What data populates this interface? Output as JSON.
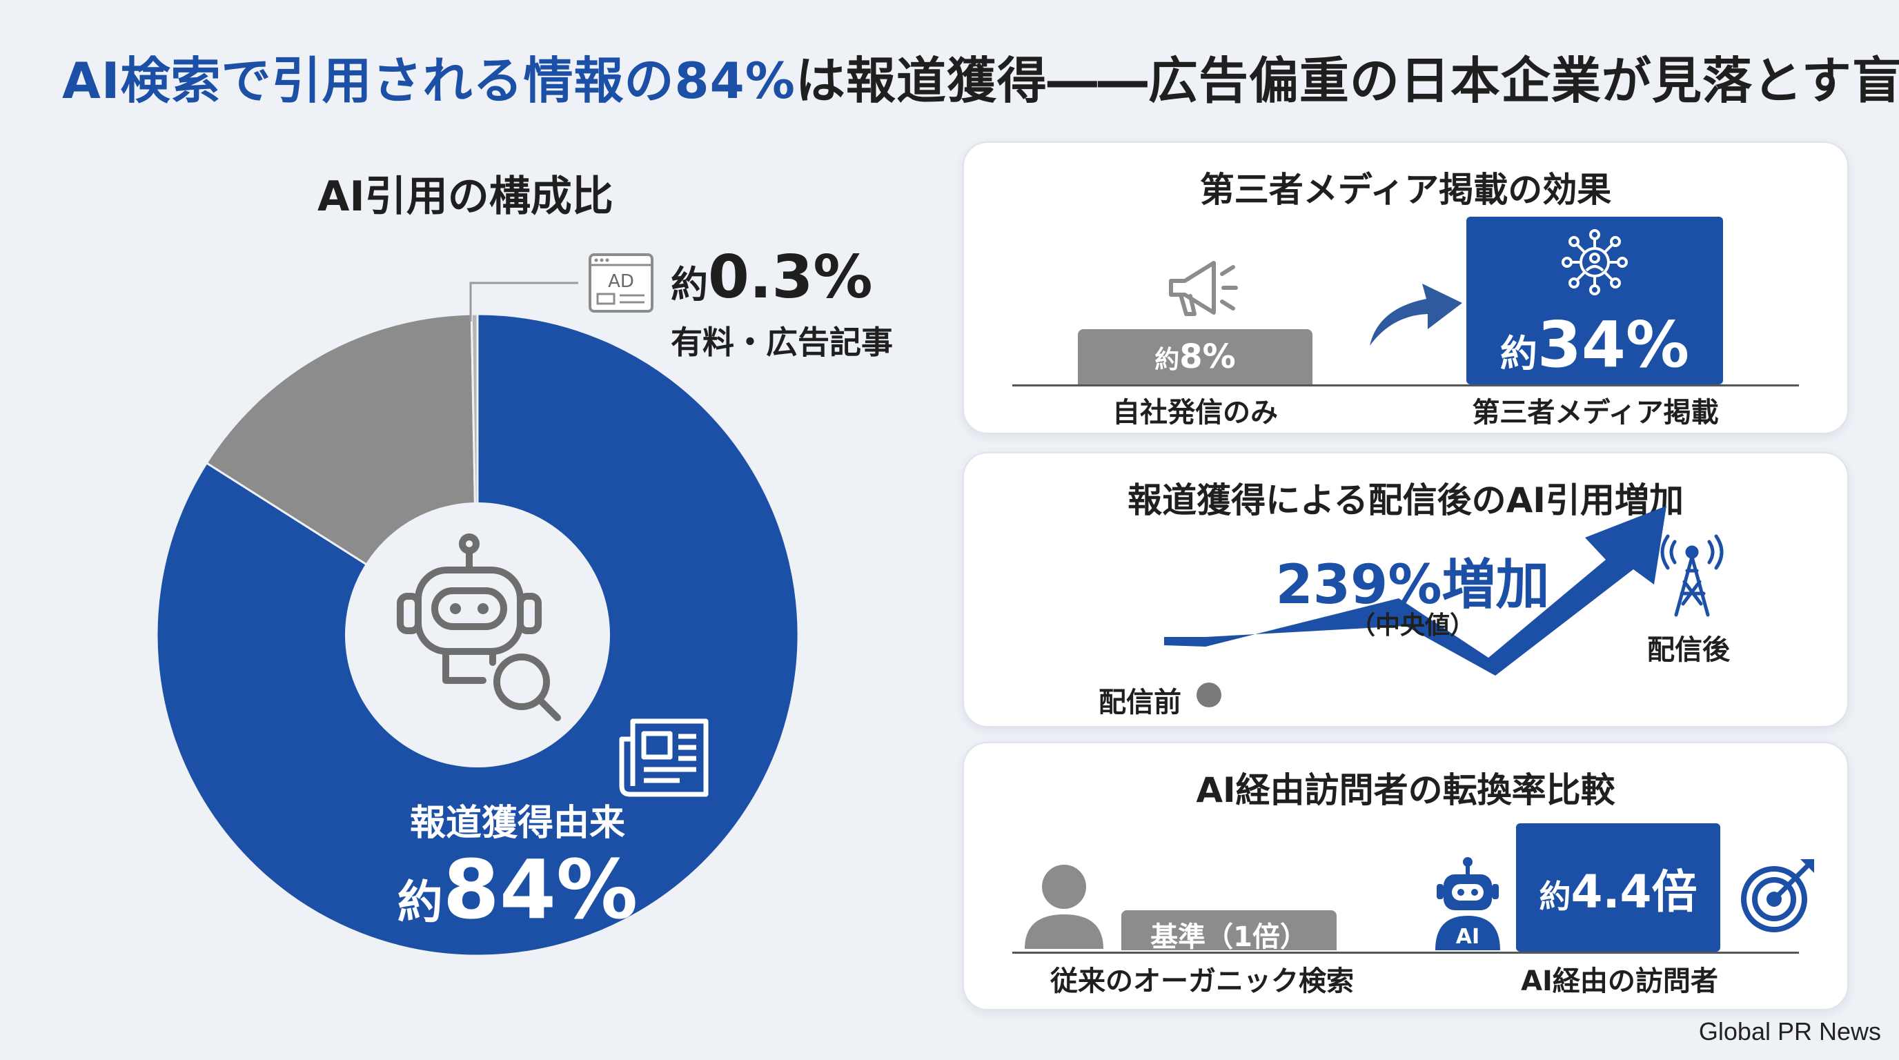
{
  "title": {
    "highlight": "AI検索で引用される情報の84%",
    "rest": "は報道獲得――広告偏重の日本企業が見落とす盲点"
  },
  "left": {
    "heading": "AI引用の構成比",
    "ad_prefix": "約",
    "ad_value": "0.3%",
    "ad_label": "有料・広告記事",
    "ad_icon_text": "AD",
    "main_label": "報道獲得由来",
    "main_prefix": "約",
    "main_value": "84%"
  },
  "chart_data": [
    {
      "type": "pie",
      "title": "AI引用の構成比",
      "labels": [
        "報道獲得由来",
        "",
        "有料・広告記事"
      ],
      "values": [
        84,
        15.7,
        0.3
      ],
      "colors": [
        "#1c4fa6",
        "#8c8c8c",
        "#b5b5b5"
      ],
      "donut": true
    },
    {
      "type": "bar",
      "title": "第三者メディア掲載の効果",
      "categories": [
        "自社発信のみ",
        "第三者メディア掲載"
      ],
      "values": [
        8,
        34
      ],
      "value_labels": [
        "約8%",
        "約34%"
      ],
      "colors": [
        "#8c8c8c",
        "#1c4fa6"
      ]
    },
    {
      "type": "line",
      "title": "報道獲得による配信後のAI引用増加",
      "categories": [
        "配信前",
        "配信後"
      ],
      "annotation": "239%増加",
      "annotation_sub": "（中央値）"
    },
    {
      "type": "bar",
      "title": "AI経由訪問者の転換率比較",
      "categories": [
        "従来のオーガニック検索",
        "AI経由の訪問者"
      ],
      "values": [
        1,
        4.4
      ],
      "value_labels": [
        "基準（1倍）",
        "約4.4倍"
      ],
      "colors": [
        "#8c8c8c",
        "#1c4fa6"
      ]
    }
  ],
  "card1": {
    "title": "第三者メディア掲載の効果",
    "bar1_prefix": "約",
    "bar1_value": "8%",
    "bar2_prefix": "約",
    "bar2_value": "34%",
    "label1": "自社発信のみ",
    "label2": "第三者メディア掲載"
  },
  "card2": {
    "title": "報道獲得による配信後のAI引用増加",
    "increase": "239%増加",
    "sub": "（中央値）",
    "before": "配信前",
    "after": "配信後"
  },
  "card3": {
    "title": "AI経由訪問者の転換率比較",
    "base_label": "基準（1倍）",
    "ai_prefix": "約",
    "ai_value": "4.4倍",
    "ai_badge": "AI",
    "label1": "従来のオーガニック検索",
    "label2": "AI経由の訪問者"
  },
  "footer": "Global PR News",
  "icons": [
    "robot-search-icon",
    "newspaper-icon",
    "ad-icon",
    "megaphone-icon",
    "network-user-icon",
    "arrow-icon",
    "trend-arrow-icon",
    "antenna-icon",
    "person-icon",
    "ai-robot-icon",
    "target-icon"
  ],
  "colors": {
    "blue": "#1c4fa6",
    "gray": "#8c8c8c",
    "background": "#eef1f6"
  }
}
